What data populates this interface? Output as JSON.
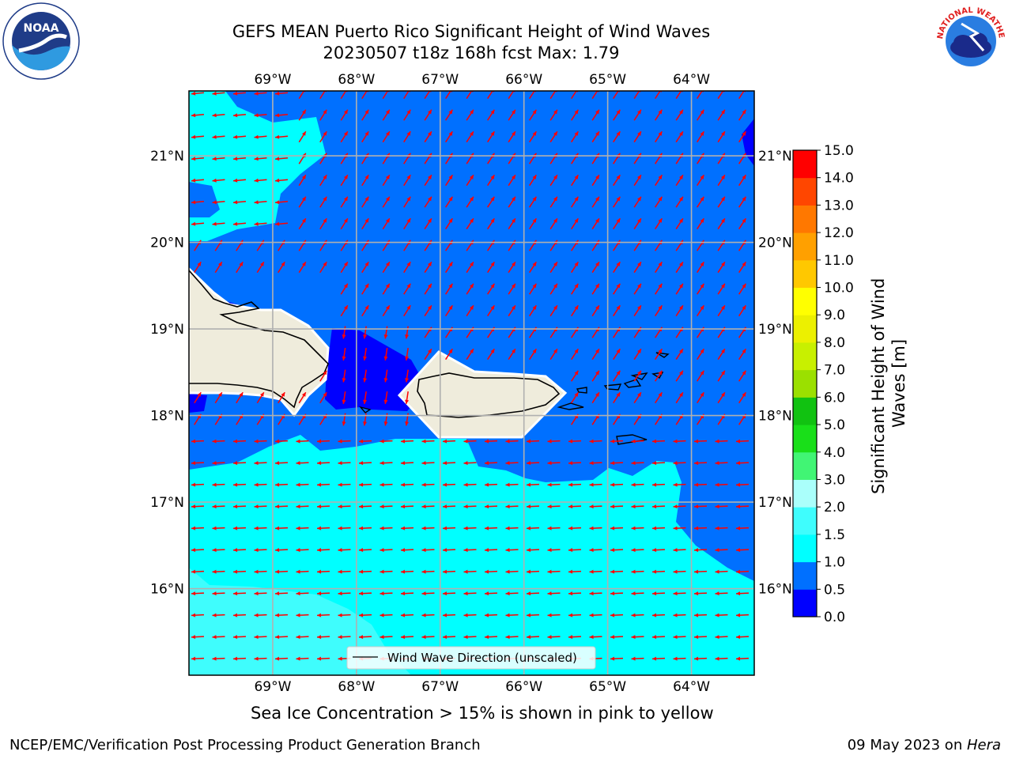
{
  "title": {
    "line1": "GEFS MEAN Puerto Rico Significant Height of Wind Waves",
    "line2": "20230507 t18z 168h fcst   Max: 1.79"
  },
  "logos": {
    "noaa": {
      "text": "NOAA",
      "ring_text": "NATIONAL OCEANIC AND ATMOSPHERIC ADMINISTRATION · U.S. DEPARTMENT OF COMMERCE",
      "icon": "noaa-logo"
    },
    "nws": {
      "ring_text": "NATIONAL WEATHER SERVICE",
      "icon": "nws-logo"
    }
  },
  "map": {
    "lon_ticks": [
      "69°W",
      "68°W",
      "67°W",
      "66°W",
      "65°W",
      "64°W"
    ],
    "lat_ticks": [
      "21°N",
      "20°N",
      "19°N",
      "18°N",
      "17°N",
      "16°N"
    ],
    "lon_values": [
      -69,
      -68,
      -67,
      -66,
      -65,
      -64
    ],
    "lat_values": [
      21,
      20,
      19,
      18,
      17,
      16
    ],
    "lon_range": [
      -70,
      -63.25
    ],
    "lat_range": [
      15.0,
      21.75
    ],
    "grid": true,
    "legend_text": "Wind Wave Direction (unscaled)",
    "legend_position": "bottom-center",
    "arrow_color": "#ff0000",
    "coast_color": "#000000",
    "land_color": "#efecdc"
  },
  "colorbar": {
    "label": "Significant Height of Wind Waves [m]",
    "unit": "m",
    "levels": [
      "0.0",
      "0.5",
      "1.0",
      "1.5",
      "2.0",
      "3.0",
      "4.0",
      "5.0",
      "6.0",
      "7.0",
      "8.0",
      "9.0",
      "10.0",
      "11.0",
      "12.0",
      "13.0",
      "14.0",
      "15.0"
    ],
    "colors": [
      "#0000ff",
      "#0070ff",
      "#00ffff",
      "#3ffdfd",
      "#aafffb",
      "#41f574",
      "#19df19",
      "#11c211",
      "#9be000",
      "#c8f000",
      "#ecf000",
      "#ffff00",
      "#ffc800",
      "#ffa000",
      "#ff7800",
      "#ff4600",
      "#ff0000"
    ]
  },
  "field_colors": {
    "band_0_0_5": "#0000ff",
    "band_0_5_1_0": "#0070ff",
    "band_1_0_1_5": "#00ffff",
    "band_1_5_2_0": "#3ffdfd"
  },
  "captions": {
    "ice": "Sea Ice Concentration > 15% is shown in pink to yellow",
    "footer_left": "NCEP/EMC/Verification Post Processing Product Generation Branch",
    "footer_date": "09 May 2023 on ",
    "footer_host": "Hera"
  }
}
